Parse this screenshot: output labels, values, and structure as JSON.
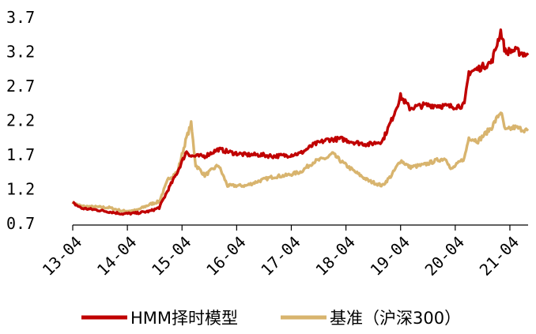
{
  "chart_data": {
    "type": "line",
    "title": "",
    "xlabel": "",
    "ylabel": "",
    "x_tick_labels": [
      "13-04",
      "14-04",
      "15-04",
      "16-04",
      "17-04",
      "18-04",
      "19-04",
      "20-04",
      "21-04"
    ],
    "y_tick_labels": [
      "0.7",
      "1.2",
      "1.7",
      "2.2",
      "2.7",
      "3.2",
      "3.7"
    ],
    "y_ticks": [
      0.7,
      1.2,
      1.7,
      2.2,
      2.7,
      3.2,
      3.7
    ],
    "ylim": [
      0.7,
      3.7
    ],
    "xlim": [
      "2013-04",
      "2021-08"
    ],
    "grid": false,
    "legend_position": "bottom",
    "series": [
      {
        "name": "HMM择时模型",
        "color": "#C00000",
        "points": [
          [
            "2013-04",
            1.0
          ],
          [
            "2013-06",
            0.92
          ],
          [
            "2013-09",
            0.9
          ],
          [
            "2013-12",
            0.87
          ],
          [
            "2014-03",
            0.84
          ],
          [
            "2014-06",
            0.85
          ],
          [
            "2014-09",
            0.88
          ],
          [
            "2014-11",
            0.93
          ],
          [
            "2015-01",
            1.2
          ],
          [
            "2015-03",
            1.45
          ],
          [
            "2015-05",
            1.75
          ],
          [
            "2015-06",
            1.68
          ],
          [
            "2015-09",
            1.68
          ],
          [
            "2015-12",
            1.78
          ],
          [
            "2016-03",
            1.73
          ],
          [
            "2016-06",
            1.7
          ],
          [
            "2016-09",
            1.7
          ],
          [
            "2016-12",
            1.68
          ],
          [
            "2017-03",
            1.69
          ],
          [
            "2017-06",
            1.72
          ],
          [
            "2017-09",
            1.85
          ],
          [
            "2017-12",
            1.92
          ],
          [
            "2018-03",
            1.93
          ],
          [
            "2018-06",
            1.88
          ],
          [
            "2018-09",
            1.85
          ],
          [
            "2018-12",
            1.9
          ],
          [
            "2019-02",
            2.2
          ],
          [
            "2019-04",
            2.55
          ],
          [
            "2019-06",
            2.38
          ],
          [
            "2019-09",
            2.42
          ],
          [
            "2019-12",
            2.42
          ],
          [
            "2020-03",
            2.4
          ],
          [
            "2020-06",
            2.42
          ],
          [
            "2020-07",
            2.9
          ],
          [
            "2020-09",
            2.95
          ],
          [
            "2020-12",
            3.05
          ],
          [
            "2021-02",
            3.5
          ],
          [
            "2021-03",
            3.2
          ],
          [
            "2021-05",
            3.22
          ],
          [
            "2021-08",
            3.15
          ]
        ]
      },
      {
        "name": "基准（沪深300）",
        "color": "#D8B46E",
        "points": [
          [
            "2013-04",
            1.0
          ],
          [
            "2013-06",
            0.95
          ],
          [
            "2013-09",
            0.94
          ],
          [
            "2013-12",
            0.93
          ],
          [
            "2014-03",
            0.88
          ],
          [
            "2014-06",
            0.89
          ],
          [
            "2014-09",
            0.98
          ],
          [
            "2014-11",
            1.02
          ],
          [
            "2015-01",
            1.35
          ],
          [
            "2015-03",
            1.45
          ],
          [
            "2015-05",
            1.95
          ],
          [
            "2015-06",
            2.15
          ],
          [
            "2015-07",
            1.55
          ],
          [
            "2015-09",
            1.4
          ],
          [
            "2015-12",
            1.55
          ],
          [
            "2016-02",
            1.25
          ],
          [
            "2016-06",
            1.25
          ],
          [
            "2016-09",
            1.32
          ],
          [
            "2016-12",
            1.38
          ],
          [
            "2017-03",
            1.4
          ],
          [
            "2017-06",
            1.45
          ],
          [
            "2017-09",
            1.6
          ],
          [
            "2017-12",
            1.66
          ],
          [
            "2018-01",
            1.72
          ],
          [
            "2018-03",
            1.6
          ],
          [
            "2018-06",
            1.45
          ],
          [
            "2018-09",
            1.32
          ],
          [
            "2018-12",
            1.25
          ],
          [
            "2019-02",
            1.4
          ],
          [
            "2019-04",
            1.62
          ],
          [
            "2019-06",
            1.52
          ],
          [
            "2019-09",
            1.55
          ],
          [
            "2019-12",
            1.62
          ],
          [
            "2020-02",
            1.65
          ],
          [
            "2020-03",
            1.48
          ],
          [
            "2020-06",
            1.65
          ],
          [
            "2020-07",
            1.95
          ],
          [
            "2020-09",
            1.9
          ],
          [
            "2020-12",
            2.1
          ],
          [
            "2021-02",
            2.33
          ],
          [
            "2021-03",
            2.05
          ],
          [
            "2021-05",
            2.1
          ],
          [
            "2021-08",
            2.05
          ]
        ]
      }
    ]
  }
}
